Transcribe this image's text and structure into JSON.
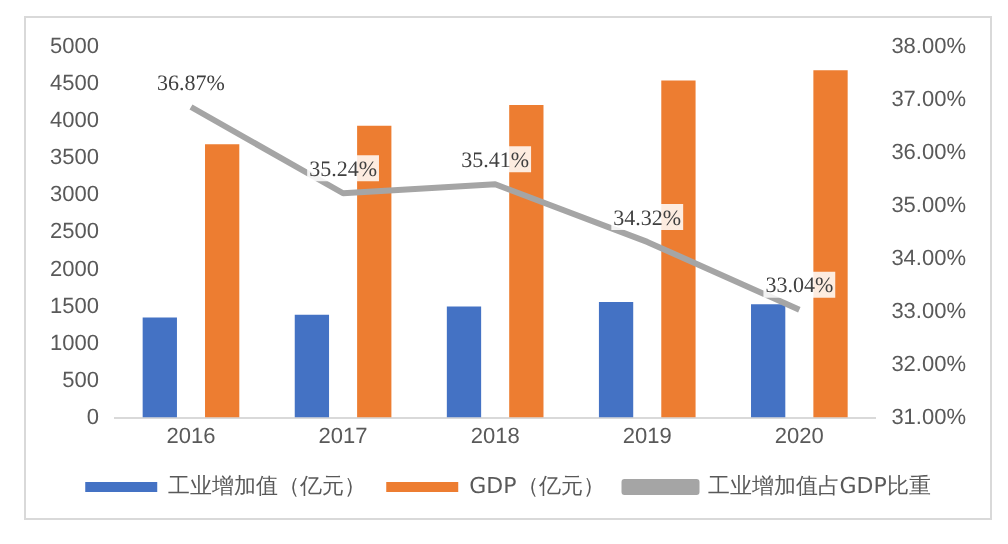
{
  "chart_data": {
    "type": "bar",
    "categories": [
      "2016",
      "2017",
      "2018",
      "2019",
      "2020"
    ],
    "series": [
      {
        "name": "工业增加值（亿元）",
        "color": "#4472c4",
        "values": [
          1350,
          1390,
          1500,
          1560,
          1530
        ]
      },
      {
        "name": "GDP（亿元）",
        "color": "#ed7d31",
        "values": [
          3690,
          3940,
          4220,
          4550,
          4690
        ]
      },
      {
        "name": "工业增加值占GDP比重",
        "type": "line",
        "axis": "y2",
        "color": "#a5a5a5",
        "values": [
          36.87,
          35.24,
          35.41,
          34.32,
          33.04
        ],
        "value_labels": [
          "36.87%",
          "35.24%",
          "35.41%",
          "34.32%",
          "33.04%"
        ]
      }
    ],
    "ylim": [
      0,
      5000
    ],
    "yticks": [
      0,
      500,
      1000,
      1500,
      2000,
      2500,
      3000,
      3500,
      4000,
      4500,
      5000
    ],
    "y2lim": [
      31,
      38
    ],
    "y2ticks": [
      {
        "value": 31,
        "label": "31.00%"
      },
      {
        "value": 32,
        "label": "32.00%"
      },
      {
        "value": 33,
        "label": "33.00%"
      },
      {
        "value": 34,
        "label": "34.00%"
      },
      {
        "value": 35,
        "label": "35.00%"
      },
      {
        "value": 36,
        "label": "36.00%"
      },
      {
        "value": 37,
        "label": "37.00%"
      },
      {
        "value": 38,
        "label": "38.00%"
      }
    ],
    "grid": false,
    "legend": "bottom",
    "marker": "none"
  }
}
